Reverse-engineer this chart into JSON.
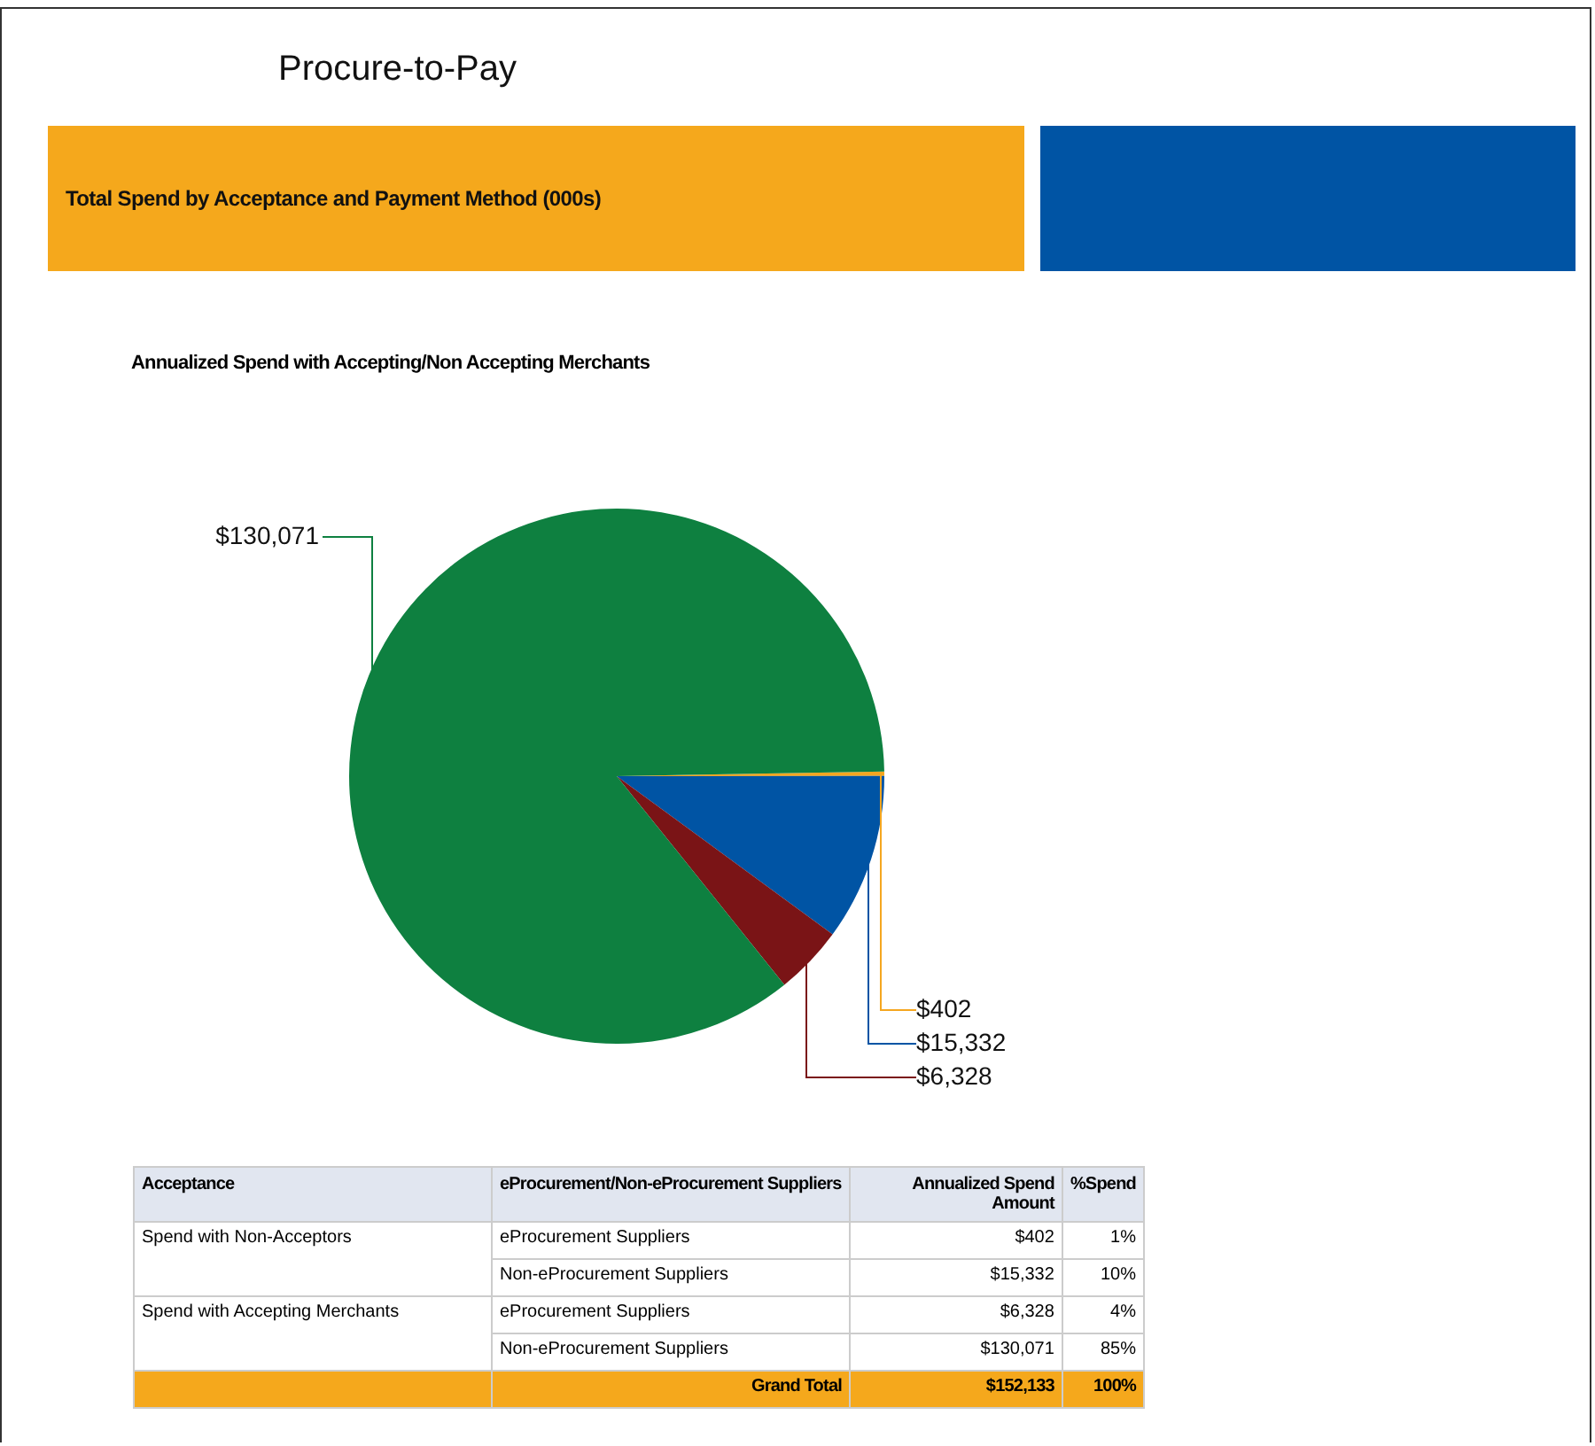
{
  "chart_data": {
    "type": "pie",
    "title": "Procure-to-Pay",
    "subtitle": "Total Spend by Acceptance and Payment Method (000s)",
    "categories": [
      null,
      null,
      null,
      null
    ],
    "values": [
      402,
      15332,
      6328,
      130071
    ],
    "colors": [
      "#f5a61f",
      "#0054a4",
      "#7a1416",
      "#0e8040"
    ],
    "value_labels": [
      "$402",
      "$15,332",
      "$6,328",
      "$130,071"
    ],
    "annotations": [
      "Annualized Spend with Accepting/Non Accepting Merchants",
      "Acceptance",
      "eProcurement/Non-eProcurement Suppliers",
      "Annualized Spend Amount",
      "%Spend",
      "Spend with Non-Acceptors",
      "Spend with Accepting Merchants",
      "1%",
      "10%",
      "4%",
      "85%",
      "Grand Total",
      "$152,133",
      "100%",
      "eProcurement Suppliers",
      "Non-eProcurement Suppliers",
      "eProcurement Suppliers",
      "Non-eProcurement Suppliers"
    ],
    "legend": false
  }
}
